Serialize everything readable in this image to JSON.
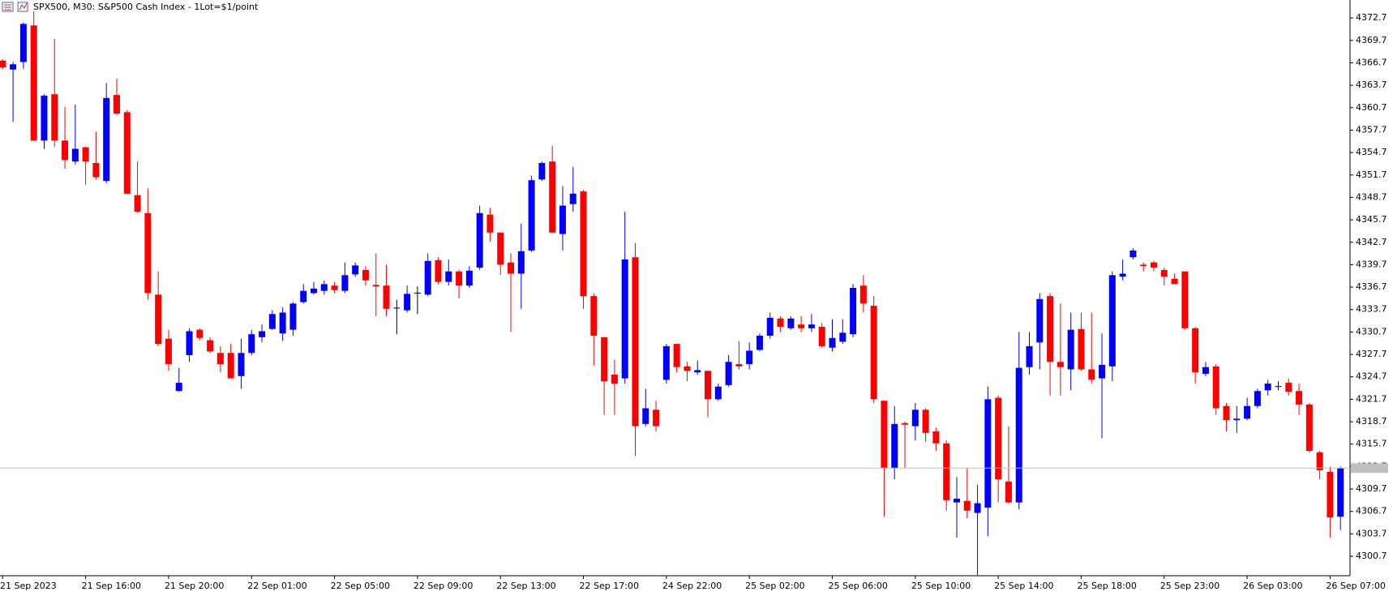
{
  "chart_data": {
    "type": "candlestick",
    "title": "SPX500, M30:  S&P500 Cash Index - 1Lot=$1/point",
    "categories": [
      "21 Sep 2023",
      null,
      null,
      null,
      null,
      null,
      null,
      null,
      "21 Sep 16:00",
      null,
      null,
      null,
      null,
      null,
      null,
      null,
      "21 Sep 20:00",
      null,
      null,
      null,
      null,
      null,
      null,
      null,
      "22 Sep 01:00",
      null,
      null,
      null,
      null,
      null,
      null,
      null,
      "22 Sep 05:00",
      null,
      null,
      null,
      null,
      null,
      null,
      null,
      "22 Sep 09:00",
      null,
      null,
      null,
      null,
      null,
      null,
      null,
      "22 Sep 13:00",
      null,
      null,
      null,
      null,
      null,
      null,
      null,
      "22 Sep 17:00",
      null,
      null,
      null,
      null,
      null,
      null,
      null,
      "24 Sep 22:00",
      null,
      null,
      null,
      null,
      null,
      null,
      null,
      "25 Sep 02:00",
      null,
      null,
      null,
      null,
      null,
      null,
      null,
      "25 Sep 06:00",
      null,
      null,
      null,
      null,
      null,
      null,
      null,
      "25 Sep 10:00",
      null,
      null,
      null,
      null,
      null,
      null,
      null,
      "25 Sep 14:00",
      null,
      null,
      null,
      null,
      null,
      null,
      null,
      "25 Sep 18:00",
      null,
      null,
      null,
      null,
      null,
      null,
      null,
      "25 Sep 23:00",
      null,
      null,
      null,
      null,
      null,
      null,
      null,
      "26 Sep 03:00",
      null,
      null,
      null,
      null,
      null,
      null,
      null,
      "26 Sep 07:00",
      null
    ],
    "open": [
      4367.0,
      4365.8,
      4366.8,
      4371.7,
      4356.3,
      4362.5,
      4356.3,
      4353.5,
      4355.4,
      4353.3,
      4350.9,
      4362.4,
      4360.1,
      4349.0,
      4346.6,
      4335.7,
      4329.8,
      4322.8,
      4327.6,
      4331.0,
      4329.6,
      4327.9,
      4327.9,
      4324.8,
      4327.9,
      4330.0,
      4331.1,
      4330.5,
      4331.0,
      4334.7,
      4335.9,
      4336.2,
      4336.9,
      4336.2,
      4338.4,
      4339.0,
      4337.0,
      4336.9,
      4333.9,
      4333.6,
      4335.9,
      4335.7,
      4340.3,
      4337.4,
      4338.8,
      4336.9,
      4339.3,
      4346.4,
      4344.0,
      4340.0,
      4338.5,
      4341.6,
      4351.1,
      4353.5,
      4343.8,
      4347.8,
      4349.5,
      4335.5,
      4330.0,
      4325.0,
      4324.5,
      4340.7,
      4318.4,
      4320.3,
      4324.3,
      4329.1,
      4326.1,
      4325.3,
      4325.5,
      4321.7,
      4323.6,
      4326.4,
      4326.4,
      4328.3,
      4330.2,
      4332.5,
      4331.2,
      4331.7,
      4331.2,
      4331.4,
      4328.6,
      4329.4,
      4330.4,
      4336.9,
      4334.2,
      4321.5,
      4312.5,
      4318.5,
      4318.1,
      4320.3,
      4317.4,
      4315.8,
      4307.9,
      4308.1,
      4306.5,
      4307.2,
      4321.9,
      4310.7,
      4307.9,
      4326.0,
      4329.3,
      4335.5,
      4326.7,
      4325.7,
      4331.1,
      4325.7,
      4324.5,
      4326.1,
      4338.1,
      4340.7,
      4339.7,
      4340.0,
      4339.0,
      4337.8,
      4338.8,
      4331.2,
      4325.1,
      4326.1,
      4320.8,
      4318.9,
      4319.1,
      4320.8,
      4322.9,
      4323.4,
      4323.9,
      4322.8,
      4321.0,
      4314.6,
      4312.0,
      4306.0
    ],
    "high": [
      4367.2,
      4366.8,
      4372.1,
      4373.6,
      4362.5,
      4369.9,
      4360.8,
      4361.1,
      4355.5,
      4357.5,
      4364.0,
      4364.6,
      4360.4,
      4353.5,
      4349.9,
      4338.8,
      4331.0,
      4325.9,
      4331.2,
      4331.2,
      4330.0,
      4328.8,
      4329.1,
      4329.8,
      4331.0,
      4331.7,
      4333.6,
      4334.0,
      4334.7,
      4337.1,
      4337.4,
      4337.6,
      4337.4,
      4340.0,
      4340.0,
      4339.5,
      4341.2,
      4339.7,
      4335.0,
      4336.9,
      4336.8,
      4341.2,
      4340.7,
      4340.4,
      4339.0,
      4339.5,
      4347.6,
      4347.3,
      4344.0,
      4341.2,
      4345.2,
      4351.6,
      4353.5,
      4355.6,
      4350.2,
      4352.8,
      4349.7,
      4335.9,
      4330.0,
      4327.0,
      4346.8,
      4342.6,
      4323.1,
      4321.5,
      4329.1,
      4329.1,
      4326.7,
      4326.9,
      4325.5,
      4323.8,
      4327.6,
      4329.5,
      4329.3,
      4330.5,
      4333.3,
      4332.8,
      4332.8,
      4332.8,
      4333.1,
      4331.9,
      4332.4,
      4332.4,
      4337.1,
      4338.3,
      4335.5,
      4321.5,
      4320.8,
      4318.7,
      4321.2,
      4320.5,
      4317.9,
      4316.2,
      4311.3,
      4312.5,
      4310.3,
      4323.4,
      4322.2,
      4318.1,
      4330.7,
      4330.7,
      4335.9,
      4335.9,
      4334.5,
      4333.3,
      4333.3,
      4333.3,
      4330.5,
      4338.8,
      4340.4,
      4341.9,
      4340.0,
      4340.2,
      4339.3,
      4338.5,
      4338.8,
      4331.4,
      4326.7,
      4326.4,
      4321.2,
      4320.8,
      4321.9,
      4323.1,
      4324.3,
      4324.1,
      4324.5,
      4323.8,
      4321.2,
      4314.8,
      4312.7,
      4312.7
    ],
    "low": [
      4365.8,
      4358.8,
      4365.9,
      4356.3,
      4355.2,
      4355.5,
      4352.5,
      4353.1,
      4350.4,
      4351.1,
      4350.6,
      4359.7,
      4349.2,
      4346.6,
      4335.0,
      4328.8,
      4325.5,
      4322.7,
      4326.7,
      4329.6,
      4327.9,
      4325.3,
      4324.5,
      4323.1,
      4327.6,
      4329.3,
      4331.0,
      4329.5,
      4330.2,
      4334.5,
      4335.7,
      4335.7,
      4335.9,
      4335.9,
      4338.1,
      4336.9,
      4332.8,
      4332.8,
      4330.4,
      4333.3,
      4333.1,
      4335.5,
      4337.1,
      4336.9,
      4335.2,
      4336.6,
      4339.0,
      4342.8,
      4338.3,
      4330.7,
      4333.8,
      4341.4,
      4350.9,
      4344.0,
      4341.6,
      4346.8,
      4333.8,
      4326.2,
      4319.6,
      4319.6,
      4323.8,
      4314.1,
      4318.1,
      4317.4,
      4323.8,
      4325.3,
      4324.1,
      4325.0,
      4319.3,
      4321.5,
      4323.4,
      4325.7,
      4325.7,
      4328.1,
      4329.8,
      4330.7,
      4331.0,
      4330.7,
      4330.7,
      4328.6,
      4328.1,
      4329.1,
      4330.0,
      4333.3,
      4321.2,
      4306.0,
      4311.0,
      4312.5,
      4316.2,
      4316.0,
      4314.8,
      4306.8,
      4303.2,
      4305.8,
      4298.2,
      4303.4,
      4307.9,
      4307.7,
      4307.0,
      4325.0,
      4325.7,
      4322.2,
      4322.2,
      4322.9,
      4325.5,
      4323.8,
      4316.5,
      4324.1,
      4337.6,
      4340.4,
      4338.8,
      4338.8,
      4336.9,
      4337.1,
      4331.0,
      4323.8,
      4324.8,
      4319.6,
      4317.4,
      4317.2,
      4318.9,
      4320.5,
      4322.2,
      4322.9,
      4322.2,
      4319.6,
      4314.6,
      4311.0,
      4303.2,
      4304.2
    ],
    "close": [
      4366.1,
      4366.5,
      4371.9,
      4356.3,
      4362.3,
      4356.3,
      4353.7,
      4355.2,
      4353.5,
      4351.4,
      4362.0,
      4359.9,
      4349.2,
      4346.8,
      4335.9,
      4329.1,
      4326.4,
      4323.9,
      4330.8,
      4329.9,
      4328.1,
      4326.4,
      4324.5,
      4327.9,
      4330.4,
      4330.8,
      4333.1,
      4333.3,
      4334.5,
      4336.2,
      4336.5,
      4337.1,
      4336.3,
      4338.3,
      4339.6,
      4337.6,
      4336.8,
      4333.8,
      4333.9,
      4335.8,
      4335.9,
      4340.2,
      4337.4,
      4338.8,
      4336.9,
      4338.9,
      4346.6,
      4344.0,
      4339.7,
      4338.5,
      4341.5,
      4351.0,
      4353.3,
      4344.0,
      4347.6,
      4349.2,
      4335.5,
      4330.2,
      4324.1,
      4323.8,
      4340.4,
      4318.1,
      4320.5,
      4318.1,
      4328.8,
      4326.0,
      4325.5,
      4325.6,
      4321.7,
      4323.4,
      4326.7,
      4326.1,
      4328.2,
      4330.2,
      4332.6,
      4331.4,
      4332.5,
      4331.2,
      4331.7,
      4328.8,
      4329.9,
      4330.6,
      4336.6,
      4334.5,
      4321.7,
      4312.5,
      4318.4,
      4318.3,
      4320.3,
      4317.2,
      4315.8,
      4308.2,
      4308.4,
      4306.8,
      4307.8,
      4321.7,
      4311.0,
      4307.9,
      4325.9,
      4328.8,
      4335.1,
      4326.7,
      4326.0,
      4331.0,
      4325.7,
      4324.3,
      4326.3,
      4338.3,
      4338.5,
      4341.6,
      4339.5,
      4339.3,
      4338.1,
      4337.1,
      4331.2,
      4325.3,
      4326.0,
      4320.5,
      4318.9,
      4319.1,
      4320.8,
      4322.8,
      4323.8,
      4323.4,
      4322.7,
      4321.0,
      4314.8,
      4312.2,
      4305.9,
      4312.5
    ],
    "up_color": "#0000ff",
    "down_color": "#ff0000",
    "doji_color": "#000000",
    "ylim": [
      4298.1,
      4375.1
    ],
    "yticks": [
      4300.7,
      4303.7,
      4306.7,
      4309.7,
      4312.7,
      4315.7,
      4318.7,
      4321.7,
      4324.7,
      4327.7,
      4330.7,
      4333.7,
      4336.7,
      4339.7,
      4342.7,
      4345.7,
      4348.7,
      4351.7,
      4354.7,
      4357.7,
      4360.7,
      4363.7,
      4366.7,
      4369.7,
      4372.7
    ],
    "grid": false
  }
}
